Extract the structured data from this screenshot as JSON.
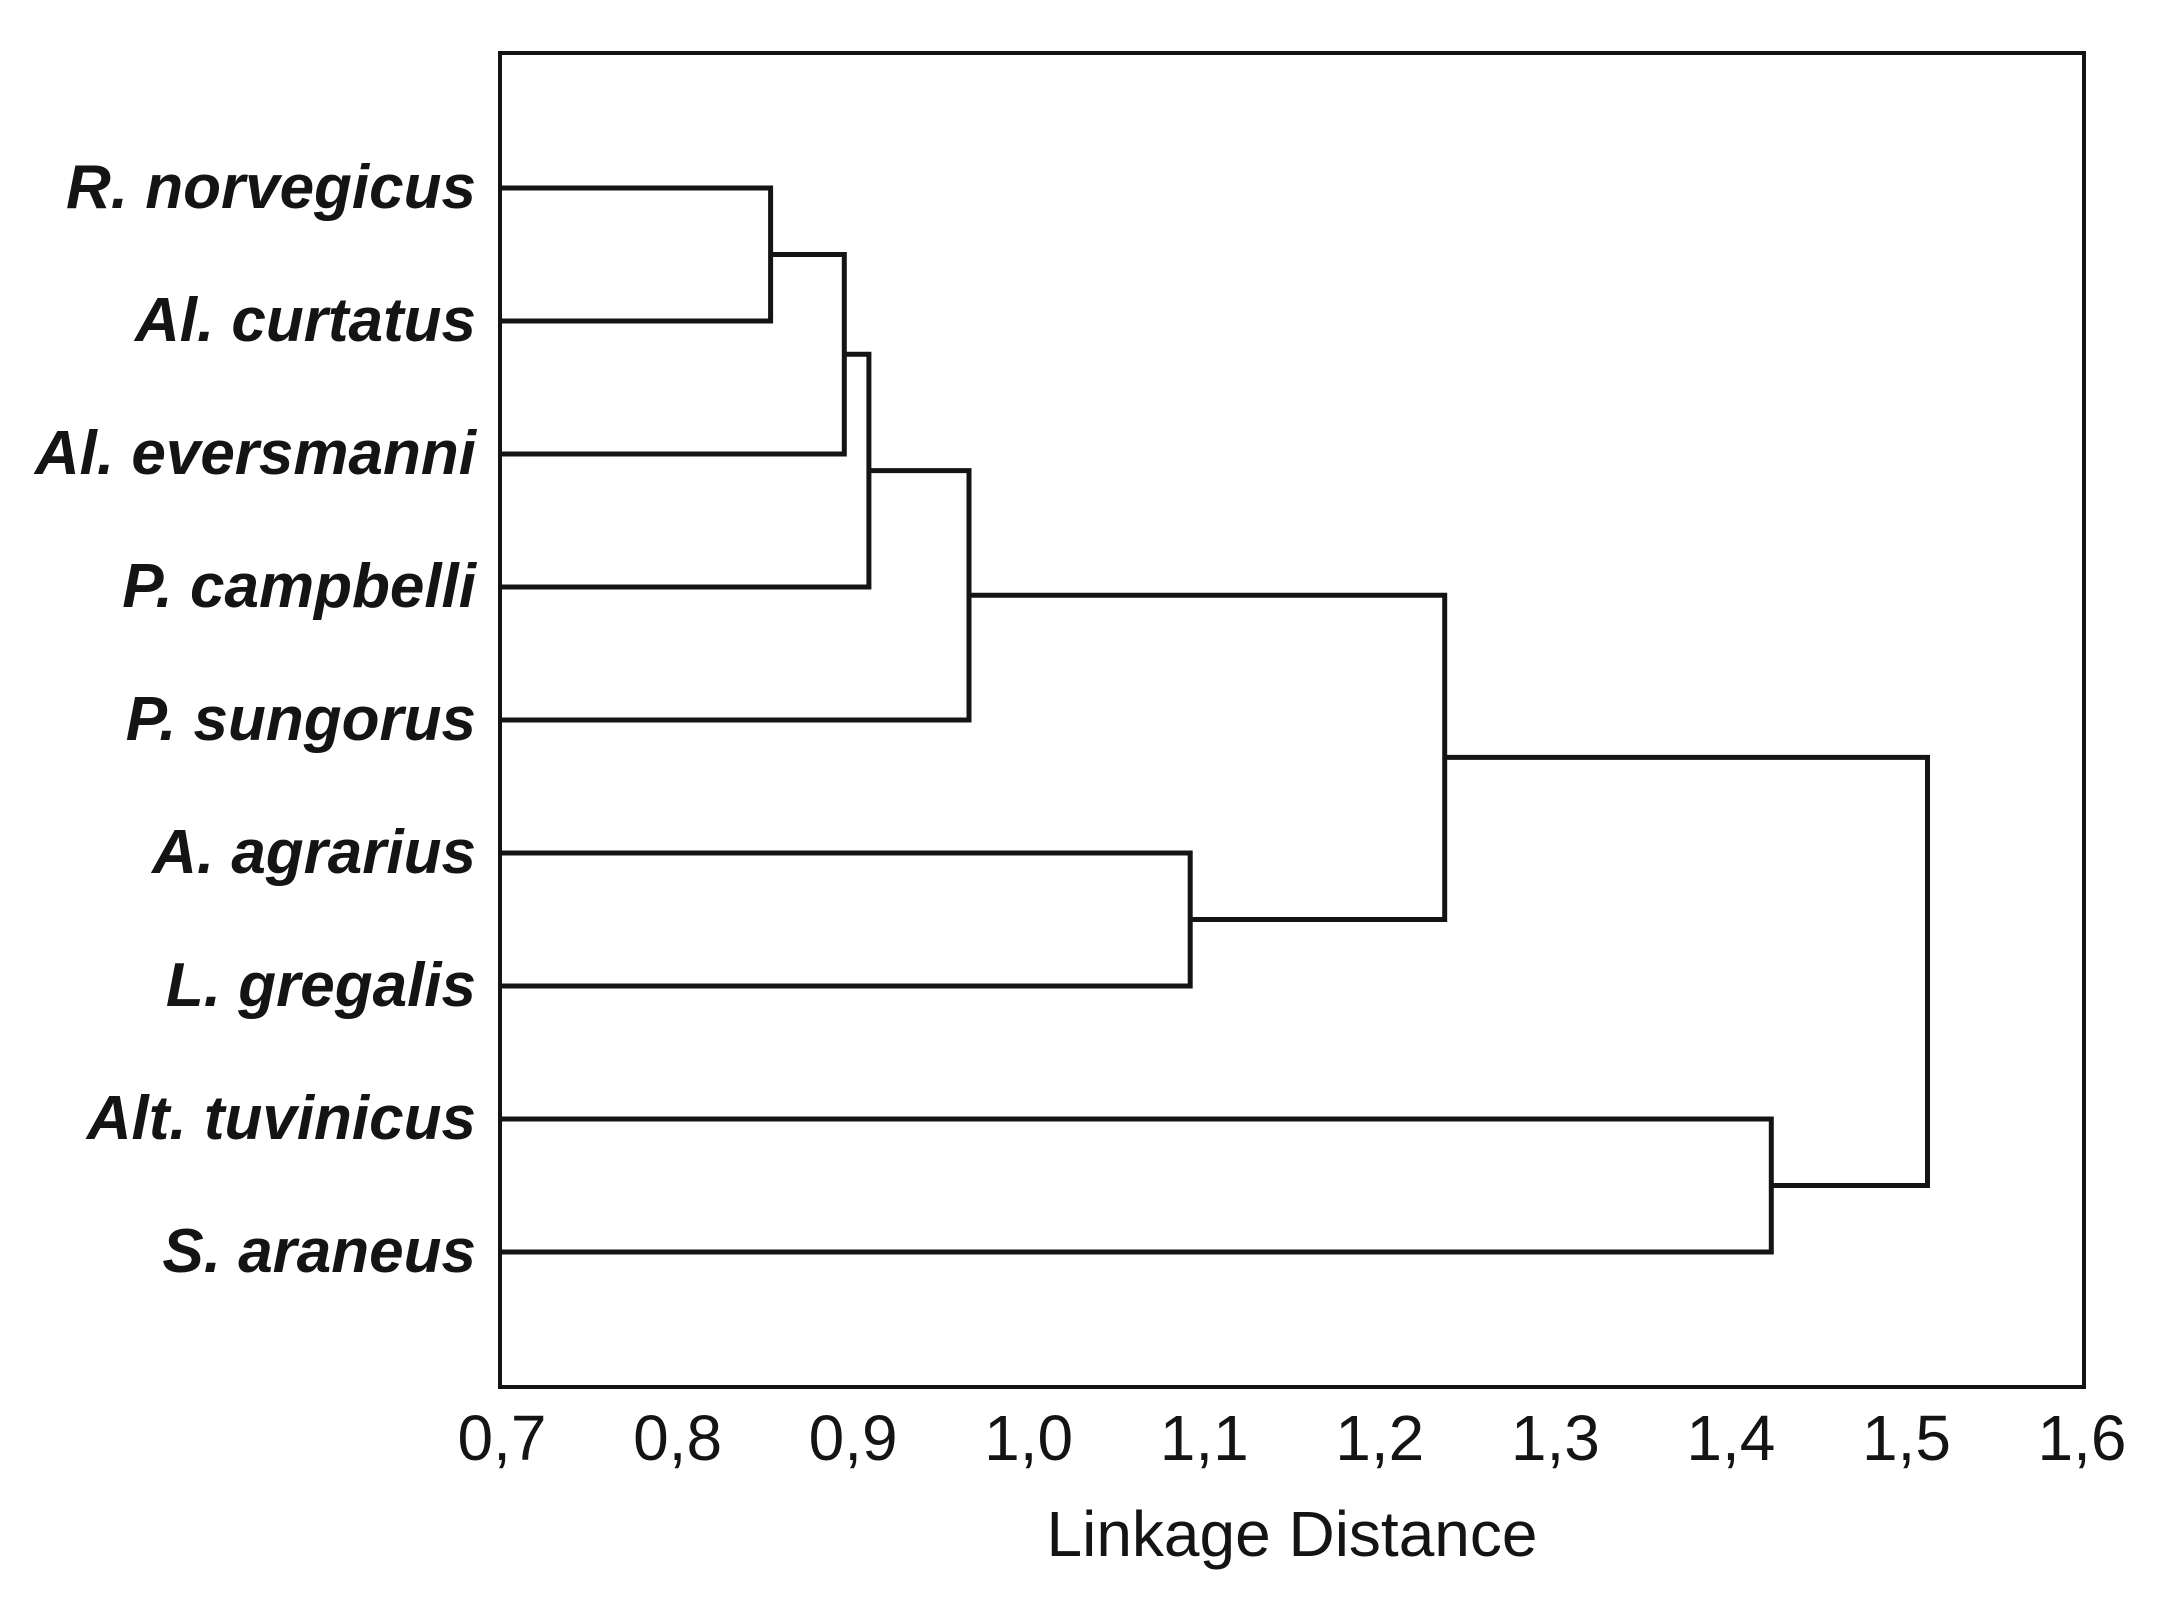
{
  "figure": {
    "background_color": "#ffffff",
    "ink_color": "#141414",
    "line_width": 5
  },
  "chart_data": {
    "type": "dendrogram",
    "orientation": "horizontal-leaves-left",
    "title": "",
    "xlabel": "Linkage Distance",
    "ylabel": "",
    "xlim": [
      0.7,
      1.6
    ],
    "grid": false,
    "legend": false,
    "decimal_separator": ",",
    "x_ticks": [
      {
        "value": 0.7,
        "label": "0,7"
      },
      {
        "value": 0.8,
        "label": "0,8"
      },
      {
        "value": 0.9,
        "label": "0,9"
      },
      {
        "value": 1.0,
        "label": "1,0"
      },
      {
        "value": 1.1,
        "label": "1,1"
      },
      {
        "value": 1.2,
        "label": "1,2"
      },
      {
        "value": 1.3,
        "label": "1,3"
      },
      {
        "value": 1.4,
        "label": "1,4"
      },
      {
        "value": 1.5,
        "label": "1,5"
      },
      {
        "value": 1.6,
        "label": "1,6"
      }
    ],
    "leaves": [
      "R. norvegicus",
      "Al. curtatus",
      "Al. eversmanni",
      "P. campbelli",
      "P. sungorus",
      "A. agrarius",
      "L. gregalis",
      "Alt. tuvinicus",
      "S. araneus"
    ],
    "merges": [
      {
        "members": [
          "R. norvegicus",
          "Al. curtatus"
        ],
        "distance": 0.853
      },
      {
        "members": [
          "[R. norvegicus + Al. curtatus]",
          "Al. eversmanni"
        ],
        "distance": 0.895
      },
      {
        "members": [
          "[R. norvegicus + Al. curtatus + Al. eversmanni]",
          "P. campbelli"
        ],
        "distance": 0.909
      },
      {
        "members": [
          "[R. norvegicus + Al. curtatus + Al. eversmanni + P. campbelli]",
          "P. sungorus"
        ],
        "distance": 0.966
      },
      {
        "members": [
          "A. agrarius",
          "L. gregalis"
        ],
        "distance": 1.092
      },
      {
        "members": [
          "[top 5-species cluster]",
          "[A. agrarius + L. gregalis]"
        ],
        "distance": 1.237
      },
      {
        "members": [
          "Alt. tuvinicus",
          "S. araneus"
        ],
        "distance": 1.423
      },
      {
        "members": [
          "[7-species cluster]",
          "[Alt. tuvinicus + S. araneus]"
        ],
        "distance": 1.512
      }
    ],
    "tree": {
      "distance": 1.512,
      "children": [
        {
          "distance": 1.237,
          "children": [
            {
              "distance": 0.966,
              "children": [
                {
                  "distance": 0.909,
                  "children": [
                    {
                      "distance": 0.895,
                      "children": [
                        {
                          "distance": 0.853,
                          "children": [
                            {
                              "leaf": "R. norvegicus"
                            },
                            {
                              "leaf": "Al. curtatus"
                            }
                          ]
                        },
                        {
                          "leaf": "Al. eversmanni"
                        }
                      ]
                    },
                    {
                      "leaf": "P. campbelli"
                    }
                  ]
                },
                {
                  "leaf": "P. sungorus"
                }
              ]
            },
            {
              "distance": 1.092,
              "children": [
                {
                  "leaf": "A. agrarius"
                },
                {
                  "leaf": "L. gregalis"
                }
              ]
            }
          ]
        },
        {
          "distance": 1.423,
          "children": [
            {
              "leaf": "Alt. tuvinicus"
            },
            {
              "leaf": "S. araneus"
            }
          ]
        }
      ]
    }
  }
}
